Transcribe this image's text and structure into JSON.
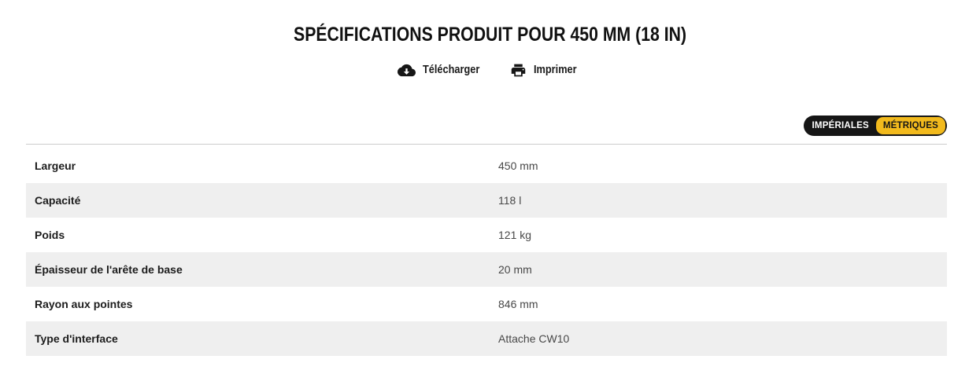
{
  "page": {
    "title": "SPÉCIFICATIONS PRODUIT POUR 450 MM (18 IN)"
  },
  "actions": {
    "download_label": "Télécharger",
    "print_label": "Imprimer"
  },
  "unit_toggle": {
    "imperial_label": "IMPÉRIALES",
    "metric_label": "MÉTRIQUES",
    "selected": "MÉTRIQUES",
    "accent_color": "#f2ba1d"
  },
  "spec_table": {
    "rows": [
      {
        "label": "Largeur",
        "value": "450 mm"
      },
      {
        "label": "Capacité",
        "value": "118 l"
      },
      {
        "label": "Poids",
        "value": "121 kg"
      },
      {
        "label": "Épaisseur de l'arête de base",
        "value": "20 mm"
      },
      {
        "label": "Rayon aux pointes",
        "value": "846 mm"
      },
      {
        "label": "Type d'interface",
        "value": "Attache CW10"
      }
    ]
  }
}
